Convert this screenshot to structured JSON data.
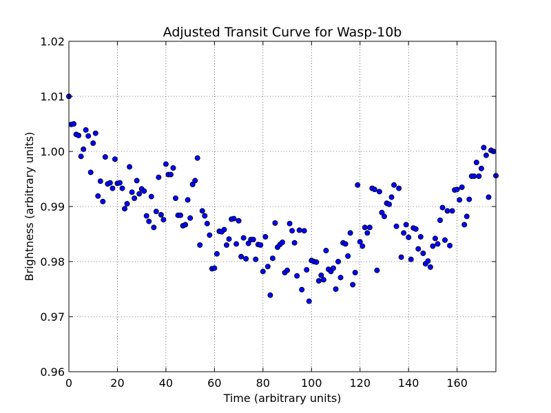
{
  "chart_data": {
    "type": "scatter",
    "title": "Adjusted Transit Curve for Wasp-10b",
    "xlabel": "Time (arbitrary units)",
    "ylabel": "Brightness (arbitrary units)",
    "xlim": [
      0,
      176
    ],
    "ylim": [
      0.96,
      1.02
    ],
    "xticks": [
      0,
      20,
      40,
      60,
      80,
      100,
      120,
      140,
      160
    ],
    "xtick_labels": [
      "0",
      "20",
      "40",
      "60",
      "80",
      "100",
      "120",
      "140",
      "160"
    ],
    "yticks": [
      0.96,
      0.97,
      0.98,
      0.99,
      1.0,
      1.01,
      1.02
    ],
    "ytick_labels": [
      "0.96",
      "0.97",
      "0.98",
      "0.99",
      "1.00",
      "1.01",
      "1.02"
    ],
    "grid": true,
    "marker_color": "#0000ff",
    "points": [
      [
        0,
        1.01
      ],
      [
        1,
        1.0049
      ],
      [
        2,
        1.005
      ],
      [
        3,
        1.0031
      ],
      [
        4,
        1.0029
      ],
      [
        5,
        0.9991
      ],
      [
        6,
        1.0004
      ],
      [
        7,
        1.0039
      ],
      [
        8,
        1.0028
      ],
      [
        9,
        0.9962
      ],
      [
        10,
        1.0015
      ],
      [
        11,
        1.0033
      ],
      [
        12,
        0.9919
      ],
      [
        13,
        0.9946
      ],
      [
        14,
        0.9909
      ],
      [
        15,
        0.999
      ],
      [
        16,
        0.9941
      ],
      [
        17,
        0.9943
      ],
      [
        18,
        0.9933
      ],
      [
        19,
        0.9986
      ],
      [
        20,
        0.9942
      ],
      [
        21,
        0.9943
      ],
      [
        22,
        0.9933
      ],
      [
        23,
        0.9896
      ],
      [
        24,
        0.9905
      ],
      [
        25,
        0.9972
      ],
      [
        26,
        0.9926
      ],
      [
        27,
        0.9915
      ],
      [
        28,
        0.9947
      ],
      [
        29,
        0.9923
      ],
      [
        30,
        0.9932
      ],
      [
        31,
        0.9928
      ],
      [
        32,
        0.9883
      ],
      [
        33,
        0.9873
      ],
      [
        34,
        0.9918
      ],
      [
        35,
        0.9862
      ],
      [
        36,
        0.9891
      ],
      [
        37,
        0.9953
      ],
      [
        38,
        0.9885
      ],
      [
        39,
        0.9876
      ],
      [
        40,
        0.9977
      ],
      [
        41,
        0.9958
      ],
      [
        42,
        0.9958
      ],
      [
        43,
        0.997
      ],
      [
        44,
        0.9915
      ],
      [
        45,
        0.9884
      ],
      [
        46,
        0.9884
      ],
      [
        47,
        0.9865
      ],
      [
        48,
        0.9867
      ],
      [
        49,
        0.9912
      ],
      [
        50,
        0.9879
      ],
      [
        51,
        0.994
      ],
      [
        52,
        0.9947
      ],
      [
        53,
        0.9988
      ],
      [
        54,
        0.983
      ],
      [
        55,
        0.9892
      ],
      [
        56,
        0.9883
      ],
      [
        57,
        0.9869
      ],
      [
        58,
        0.9848
      ],
      [
        59,
        0.9787
      ],
      [
        60,
        0.9788
      ],
      [
        61,
        0.9814
      ],
      [
        62,
        0.9855
      ],
      [
        63,
        0.9854
      ],
      [
        64,
        0.9858
      ],
      [
        65,
        0.983
      ],
      [
        66,
        0.9841
      ],
      [
        67,
        0.9877
      ],
      [
        68,
        0.9878
      ],
      [
        69,
        0.9832
      ],
      [
        70,
        0.9874
      ],
      [
        71,
        0.9809
      ],
      [
        72,
        0.9843
      ],
      [
        73,
        0.9805
      ],
      [
        74,
        0.9833
      ],
      [
        75,
        0.984
      ],
      [
        76,
        0.984
      ],
      [
        77,
        0.9804
      ],
      [
        78,
        0.9831
      ],
      [
        79,
        0.983
      ],
      [
        80,
        0.9782
      ],
      [
        81,
        0.9845
      ],
      [
        82,
        0.9791
      ],
      [
        83,
        0.9739
      ],
      [
        84,
        0.9806
      ],
      [
        85,
        0.987
      ],
      [
        86,
        0.9826
      ],
      [
        87,
        0.9831
      ],
      [
        88,
        0.9835
      ],
      [
        89,
        0.978
      ],
      [
        90,
        0.9784
      ],
      [
        91,
        0.9869
      ],
      [
        92,
        0.9856
      ],
      [
        93,
        0.9834
      ],
      [
        94,
        0.9774
      ],
      [
        95,
        0.9857
      ],
      [
        96,
        0.9749
      ],
      [
        97,
        0.9856
      ],
      [
        98,
        0.9785
      ],
      [
        99,
        0.9728
      ],
      [
        100,
        0.9802
      ],
      [
        101,
        0.98
      ],
      [
        102,
        0.9799
      ],
      [
        103,
        0.9765
      ],
      [
        104,
        0.9775
      ],
      [
        105,
        0.9767
      ],
      [
        106,
        0.982
      ],
      [
        107,
        0.9786
      ],
      [
        108,
        0.9782
      ],
      [
        109,
        0.9788
      ],
      [
        110,
        0.975
      ],
      [
        111,
        0.98
      ],
      [
        112,
        0.9771
      ],
      [
        113,
        0.9834
      ],
      [
        114,
        0.9832
      ],
      [
        115,
        0.981
      ],
      [
        116,
        0.9852
      ],
      [
        117,
        0.9758
      ],
      [
        118,
        0.978
      ],
      [
        119,
        0.9939
      ],
      [
        120,
        0.9836
      ],
      [
        121,
        0.9828
      ],
      [
        122,
        0.9862
      ],
      [
        123,
        0.9852
      ],
      [
        124,
        0.9862
      ],
      [
        125,
        0.9933
      ],
      [
        126,
        0.9931
      ],
      [
        127,
        0.9784
      ],
      [
        128,
        0.9927
      ],
      [
        129,
        0.9889
      ],
      [
        130,
        0.9882
      ],
      [
        131,
        0.9906
      ],
      [
        132,
        0.9904
      ],
      [
        133,
        0.9917
      ],
      [
        134,
        0.9939
      ],
      [
        135,
        0.9864
      ],
      [
        136,
        0.9933
      ],
      [
        137,
        0.9808
      ],
      [
        138,
        0.9852
      ],
      [
        139,
        0.9867
      ],
      [
        140,
        0.9844
      ],
      [
        141,
        0.9804
      ],
      [
        142,
        0.9861
      ],
      [
        143,
        0.9859
      ],
      [
        144,
        0.9823
      ],
      [
        145,
        0.9845
      ],
      [
        146,
        0.9815
      ],
      [
        147,
        0.9796
      ],
      [
        148,
        0.9801
      ],
      [
        149,
        0.979
      ],
      [
        150,
        0.9828
      ],
      [
        151,
        0.9842
      ],
      [
        152,
        0.9832
      ],
      [
        153,
        0.9875
      ],
      [
        154,
        0.9898
      ],
      [
        155,
        0.9839
      ],
      [
        156,
        0.9892
      ],
      [
        157,
        0.9829
      ],
      [
        158,
        0.9892
      ],
      [
        159,
        0.993
      ],
      [
        160,
        0.9931
      ],
      [
        161,
        0.9912
      ],
      [
        162,
        0.9935
      ],
      [
        163,
        0.9867
      ],
      [
        164,
        0.9882
      ],
      [
        165,
        0.9913
      ],
      [
        166,
        0.9955
      ],
      [
        167,
        0.9955
      ],
      [
        168,
        0.998
      ],
      [
        169,
        0.9955
      ],
      [
        170,
        0.9969
      ],
      [
        171,
        1.0007
      ],
      [
        172,
        0.9993
      ],
      [
        173,
        0.9917
      ],
      [
        174,
        1.0002
      ],
      [
        175,
        1.0
      ],
      [
        176,
        0.9956
      ]
    ]
  }
}
